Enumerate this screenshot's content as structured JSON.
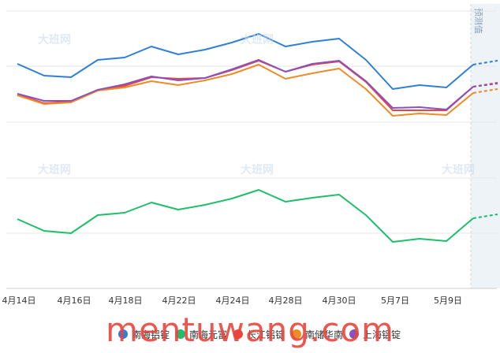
{
  "chart_data": {
    "type": "line",
    "title": "",
    "xlabel": "",
    "ylabel": "",
    "grid": true,
    "legend_placement": "bottom",
    "x_ticks": [
      "4月14日",
      "4月16日",
      "4月18日",
      "4月22日",
      "4月24日",
      "4月28日",
      "4月30日",
      "5月7日",
      "5月9日"
    ],
    "forecast_label": "预测值",
    "series": [
      {
        "name": "南海铝锭",
        "color": "#2f7fd8",
        "values": [
          81,
          96,
          98,
          76,
          73,
          59,
          69,
          63,
          54,
          43,
          59,
          53,
          49,
          76,
          113,
          108,
          111,
          82
        ],
        "forecast": 77
      },
      {
        "name": "南海元富",
        "color": "#1fbe6a",
        "values": [
          278,
          293,
          296,
          273,
          270,
          257,
          266,
          260,
          252,
          241,
          256,
          251,
          247,
          273,
          307,
          303,
          306,
          277
        ],
        "forecast": 272
      },
      {
        "name": "长江铝锭",
        "color": "#e8453c",
        "values": [
          120,
          131,
          129,
          114,
          109,
          98,
          100,
          99,
          89,
          77,
          91,
          82,
          78,
          104,
          140,
          140,
          140,
          110
        ],
        "forecast": 105
      },
      {
        "name": "南储华南",
        "color": "#ef8b26",
        "values": [
          121,
          132,
          130,
          115,
          111,
          103,
          108,
          102,
          94,
          82,
          100,
          93,
          87,
          113,
          147,
          144,
          146,
          118
        ],
        "forecast": 113
      },
      {
        "name": "上海铝锭",
        "color": "#8a50c0",
        "values": [
          119,
          128,
          128,
          114,
          107,
          97,
          102,
          99,
          88,
          76,
          91,
          81,
          77,
          103,
          137,
          136,
          139,
          110
        ],
        "forecast": 106
      }
    ],
    "forecast_points": 1
  },
  "watermark": {
    "site": "mentuwang.com",
    "logo_text": "大班网"
  }
}
